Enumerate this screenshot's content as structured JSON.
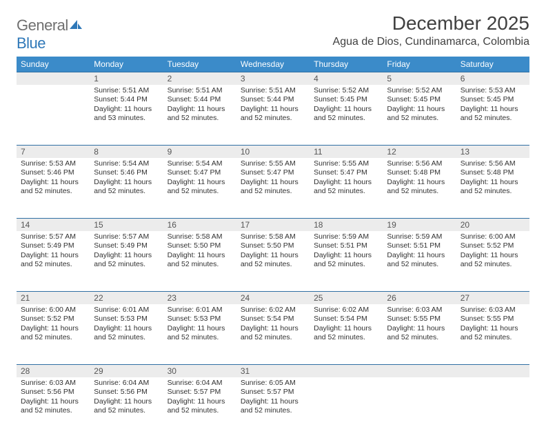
{
  "logo": {
    "part1": "General",
    "part2": "Blue"
  },
  "title": "December 2025",
  "location": "Agua de Dios, Cundinamarca, Colombia",
  "colors": {
    "header_bg": "#3b8bc9",
    "header_text": "#ffffff",
    "daynum_bg": "#ececec",
    "daynum_border": "#2f6fa3",
    "logo_gray": "#6f6f6f",
    "logo_blue": "#2f78b8",
    "text": "#313131"
  },
  "weekdays": [
    "Sunday",
    "Monday",
    "Tuesday",
    "Wednesday",
    "Thursday",
    "Friday",
    "Saturday"
  ],
  "weeks": [
    [
      {
        "n": "",
        "lines": []
      },
      {
        "n": "1",
        "lines": [
          "Sunrise: 5:51 AM",
          "Sunset: 5:44 PM",
          "Daylight: 11 hours and 53 minutes."
        ]
      },
      {
        "n": "2",
        "lines": [
          "Sunrise: 5:51 AM",
          "Sunset: 5:44 PM",
          "Daylight: 11 hours and 52 minutes."
        ]
      },
      {
        "n": "3",
        "lines": [
          "Sunrise: 5:51 AM",
          "Sunset: 5:44 PM",
          "Daylight: 11 hours and 52 minutes."
        ]
      },
      {
        "n": "4",
        "lines": [
          "Sunrise: 5:52 AM",
          "Sunset: 5:45 PM",
          "Daylight: 11 hours and 52 minutes."
        ]
      },
      {
        "n": "5",
        "lines": [
          "Sunrise: 5:52 AM",
          "Sunset: 5:45 PM",
          "Daylight: 11 hours and 52 minutes."
        ]
      },
      {
        "n": "6",
        "lines": [
          "Sunrise: 5:53 AM",
          "Sunset: 5:45 PM",
          "Daylight: 11 hours and 52 minutes."
        ]
      }
    ],
    [
      {
        "n": "7",
        "lines": [
          "Sunrise: 5:53 AM",
          "Sunset: 5:46 PM",
          "Daylight: 11 hours and 52 minutes."
        ]
      },
      {
        "n": "8",
        "lines": [
          "Sunrise: 5:54 AM",
          "Sunset: 5:46 PM",
          "Daylight: 11 hours and 52 minutes."
        ]
      },
      {
        "n": "9",
        "lines": [
          "Sunrise: 5:54 AM",
          "Sunset: 5:47 PM",
          "Daylight: 11 hours and 52 minutes."
        ]
      },
      {
        "n": "10",
        "lines": [
          "Sunrise: 5:55 AM",
          "Sunset: 5:47 PM",
          "Daylight: 11 hours and 52 minutes."
        ]
      },
      {
        "n": "11",
        "lines": [
          "Sunrise: 5:55 AM",
          "Sunset: 5:47 PM",
          "Daylight: 11 hours and 52 minutes."
        ]
      },
      {
        "n": "12",
        "lines": [
          "Sunrise: 5:56 AM",
          "Sunset: 5:48 PM",
          "Daylight: 11 hours and 52 minutes."
        ]
      },
      {
        "n": "13",
        "lines": [
          "Sunrise: 5:56 AM",
          "Sunset: 5:48 PM",
          "Daylight: 11 hours and 52 minutes."
        ]
      }
    ],
    [
      {
        "n": "14",
        "lines": [
          "Sunrise: 5:57 AM",
          "Sunset: 5:49 PM",
          "Daylight: 11 hours and 52 minutes."
        ]
      },
      {
        "n": "15",
        "lines": [
          "Sunrise: 5:57 AM",
          "Sunset: 5:49 PM",
          "Daylight: 11 hours and 52 minutes."
        ]
      },
      {
        "n": "16",
        "lines": [
          "Sunrise: 5:58 AM",
          "Sunset: 5:50 PM",
          "Daylight: 11 hours and 52 minutes."
        ]
      },
      {
        "n": "17",
        "lines": [
          "Sunrise: 5:58 AM",
          "Sunset: 5:50 PM",
          "Daylight: 11 hours and 52 minutes."
        ]
      },
      {
        "n": "18",
        "lines": [
          "Sunrise: 5:59 AM",
          "Sunset: 5:51 PM",
          "Daylight: 11 hours and 52 minutes."
        ]
      },
      {
        "n": "19",
        "lines": [
          "Sunrise: 5:59 AM",
          "Sunset: 5:51 PM",
          "Daylight: 11 hours and 52 minutes."
        ]
      },
      {
        "n": "20",
        "lines": [
          "Sunrise: 6:00 AM",
          "Sunset: 5:52 PM",
          "Daylight: 11 hours and 52 minutes."
        ]
      }
    ],
    [
      {
        "n": "21",
        "lines": [
          "Sunrise: 6:00 AM",
          "Sunset: 5:52 PM",
          "Daylight: 11 hours and 52 minutes."
        ]
      },
      {
        "n": "22",
        "lines": [
          "Sunrise: 6:01 AM",
          "Sunset: 5:53 PM",
          "Daylight: 11 hours and 52 minutes."
        ]
      },
      {
        "n": "23",
        "lines": [
          "Sunrise: 6:01 AM",
          "Sunset: 5:53 PM",
          "Daylight: 11 hours and 52 minutes."
        ]
      },
      {
        "n": "24",
        "lines": [
          "Sunrise: 6:02 AM",
          "Sunset: 5:54 PM",
          "Daylight: 11 hours and 52 minutes."
        ]
      },
      {
        "n": "25",
        "lines": [
          "Sunrise: 6:02 AM",
          "Sunset: 5:54 PM",
          "Daylight: 11 hours and 52 minutes."
        ]
      },
      {
        "n": "26",
        "lines": [
          "Sunrise: 6:03 AM",
          "Sunset: 5:55 PM",
          "Daylight: 11 hours and 52 minutes."
        ]
      },
      {
        "n": "27",
        "lines": [
          "Sunrise: 6:03 AM",
          "Sunset: 5:55 PM",
          "Daylight: 11 hours and 52 minutes."
        ]
      }
    ],
    [
      {
        "n": "28",
        "lines": [
          "Sunrise: 6:03 AM",
          "Sunset: 5:56 PM",
          "Daylight: 11 hours and 52 minutes."
        ]
      },
      {
        "n": "29",
        "lines": [
          "Sunrise: 6:04 AM",
          "Sunset: 5:56 PM",
          "Daylight: 11 hours and 52 minutes."
        ]
      },
      {
        "n": "30",
        "lines": [
          "Sunrise: 6:04 AM",
          "Sunset: 5:57 PM",
          "Daylight: 11 hours and 52 minutes."
        ]
      },
      {
        "n": "31",
        "lines": [
          "Sunrise: 6:05 AM",
          "Sunset: 5:57 PM",
          "Daylight: 11 hours and 52 minutes."
        ]
      },
      {
        "n": "",
        "lines": []
      },
      {
        "n": "",
        "lines": []
      },
      {
        "n": "",
        "lines": []
      }
    ]
  ]
}
